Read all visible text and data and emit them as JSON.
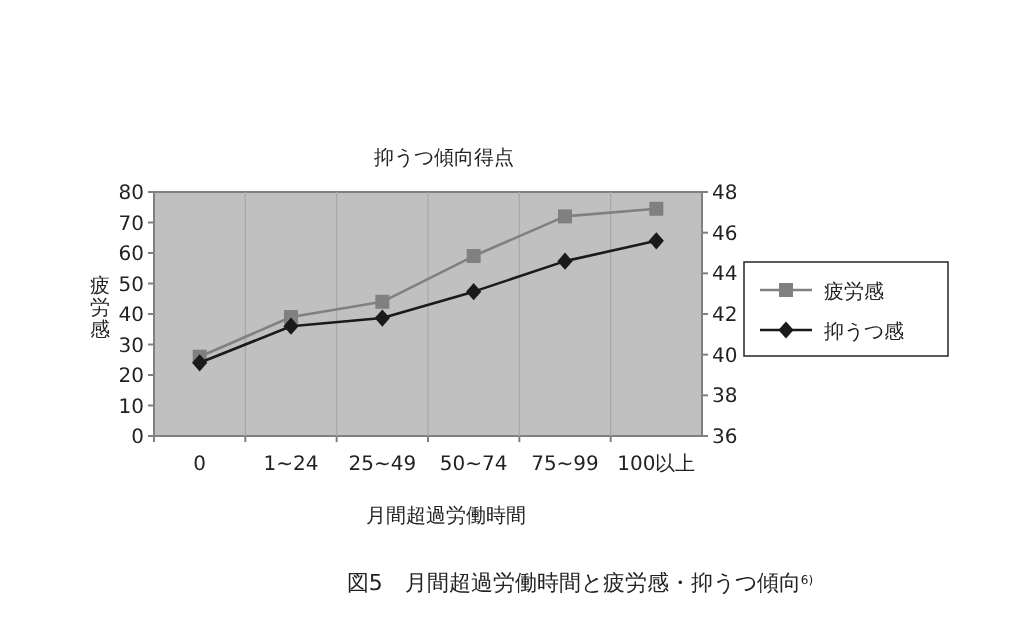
{
  "chart_data": {
    "type": "line",
    "categories": [
      "0",
      "1~24",
      "25~49",
      "50~74",
      "75~99",
      "100以上"
    ],
    "series": [
      {
        "name": "疲労感",
        "color": "#808080",
        "marker": "square",
        "values": [
          26,
          39,
          44,
          59,
          72,
          74.5
        ]
      },
      {
        "name": "抑うつ感",
        "color": "#1a1a1a",
        "marker": "diamond",
        "axis": "y2",
        "values": [
          39.6,
          41.4,
          41.8,
          43.1,
          44.6,
          45.6
        ]
      }
    ],
    "ylabel": "疲労感",
    "y2label": "抑うつ傾向得点",
    "xlabel": "月間超過労働時間",
    "ylim": [
      0,
      80
    ],
    "yticks": [
      0,
      10,
      20,
      30,
      40,
      50,
      60,
      70,
      80
    ],
    "y2lim": [
      36,
      48
    ],
    "y2ticks": [
      36,
      38,
      40,
      42,
      44,
      46,
      48
    ],
    "grid": "x",
    "legend": "right",
    "annotations": [
      "図5　月間超過労働時間と疲労感・抑うつ傾向$^{6)}$"
    ]
  }
}
